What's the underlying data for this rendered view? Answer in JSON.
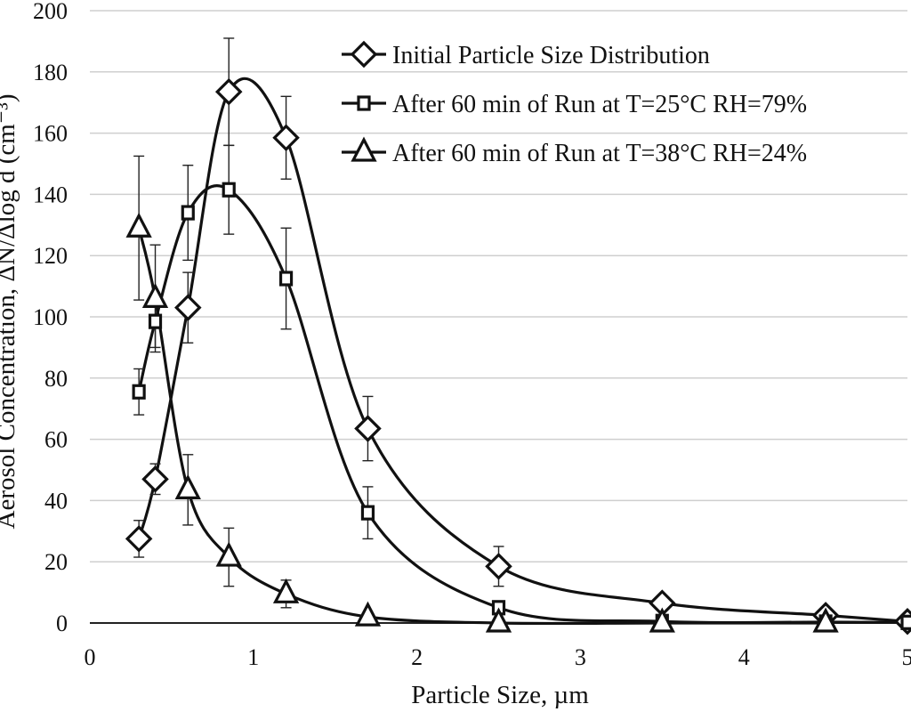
{
  "chart_data": {
    "type": "scatter",
    "xlabel": "Particle Size, µm",
    "ylabel": "Aerosol Concentration, ΔN/Δlog d (cm⁻³)",
    "xlim": [
      0,
      5
    ],
    "ylim": [
      0,
      200
    ],
    "xticks": [
      0,
      1,
      2,
      3,
      4,
      5
    ],
    "yticks": [
      0,
      20,
      40,
      60,
      80,
      100,
      120,
      140,
      160,
      180,
      200
    ],
    "grid": "horizontal",
    "legend_position": "top-right",
    "series": [
      {
        "name": "Initial Particle Size Distribution",
        "marker": "diamond",
        "points": [
          {
            "x": 0.3,
            "y": 27.5,
            "err": 6
          },
          {
            "x": 0.4,
            "y": 47,
            "err": 5
          },
          {
            "x": 0.6,
            "y": 103,
            "err": 11.5
          },
          {
            "x": 0.85,
            "y": 173.5,
            "err": 17.5
          },
          {
            "x": 1.2,
            "y": 158.5,
            "err": 13.5
          },
          {
            "x": 1.7,
            "y": 63.5,
            "err": 10.5
          },
          {
            "x": 2.5,
            "y": 18.5,
            "err": 6.5
          },
          {
            "x": 3.5,
            "y": 6.5,
            "err": 0
          },
          {
            "x": 4.5,
            "y": 2.5,
            "err": 0
          },
          {
            "x": 5.0,
            "y": 0.5,
            "err": 0
          }
        ]
      },
      {
        "name": "After 60 min of Run at T=25°C RH=79%",
        "marker": "square",
        "points": [
          {
            "x": 0.3,
            "y": 75.5,
            "err": 7.5
          },
          {
            "x": 0.4,
            "y": 98.5,
            "err": 8.5
          },
          {
            "x": 0.6,
            "y": 134,
            "err": 15.5
          },
          {
            "x": 0.85,
            "y": 141.5,
            "err": 14.5
          },
          {
            "x": 1.2,
            "y": 112.5,
            "err": 16.5
          },
          {
            "x": 1.7,
            "y": 36,
            "err": 8.5
          },
          {
            "x": 2.5,
            "y": 5,
            "err": 0
          },
          {
            "x": 3.5,
            "y": 0.5,
            "err": 0
          },
          {
            "x": 4.5,
            "y": 0.3,
            "err": 0
          },
          {
            "x": 5.0,
            "y": 0.2,
            "err": 0
          }
        ]
      },
      {
        "name": "After 60 min of Run at T=38°C RH=24%",
        "marker": "triangle",
        "points": [
          {
            "x": 0.3,
            "y": 129,
            "err": 23.5
          },
          {
            "x": 0.4,
            "y": 106,
            "err": 17.5
          },
          {
            "x": 0.6,
            "y": 43.5,
            "err": 11.5
          },
          {
            "x": 0.85,
            "y": 21.5,
            "err": 9.5
          },
          {
            "x": 1.2,
            "y": 9.5,
            "err": 4.5
          },
          {
            "x": 1.7,
            "y": 2,
            "err": 0
          },
          {
            "x": 2.5,
            "y": 0,
            "err": 0
          },
          {
            "x": 3.5,
            "y": 0,
            "err": 0
          },
          {
            "x": 4.5,
            "y": 0,
            "err": 0
          }
        ]
      }
    ]
  }
}
